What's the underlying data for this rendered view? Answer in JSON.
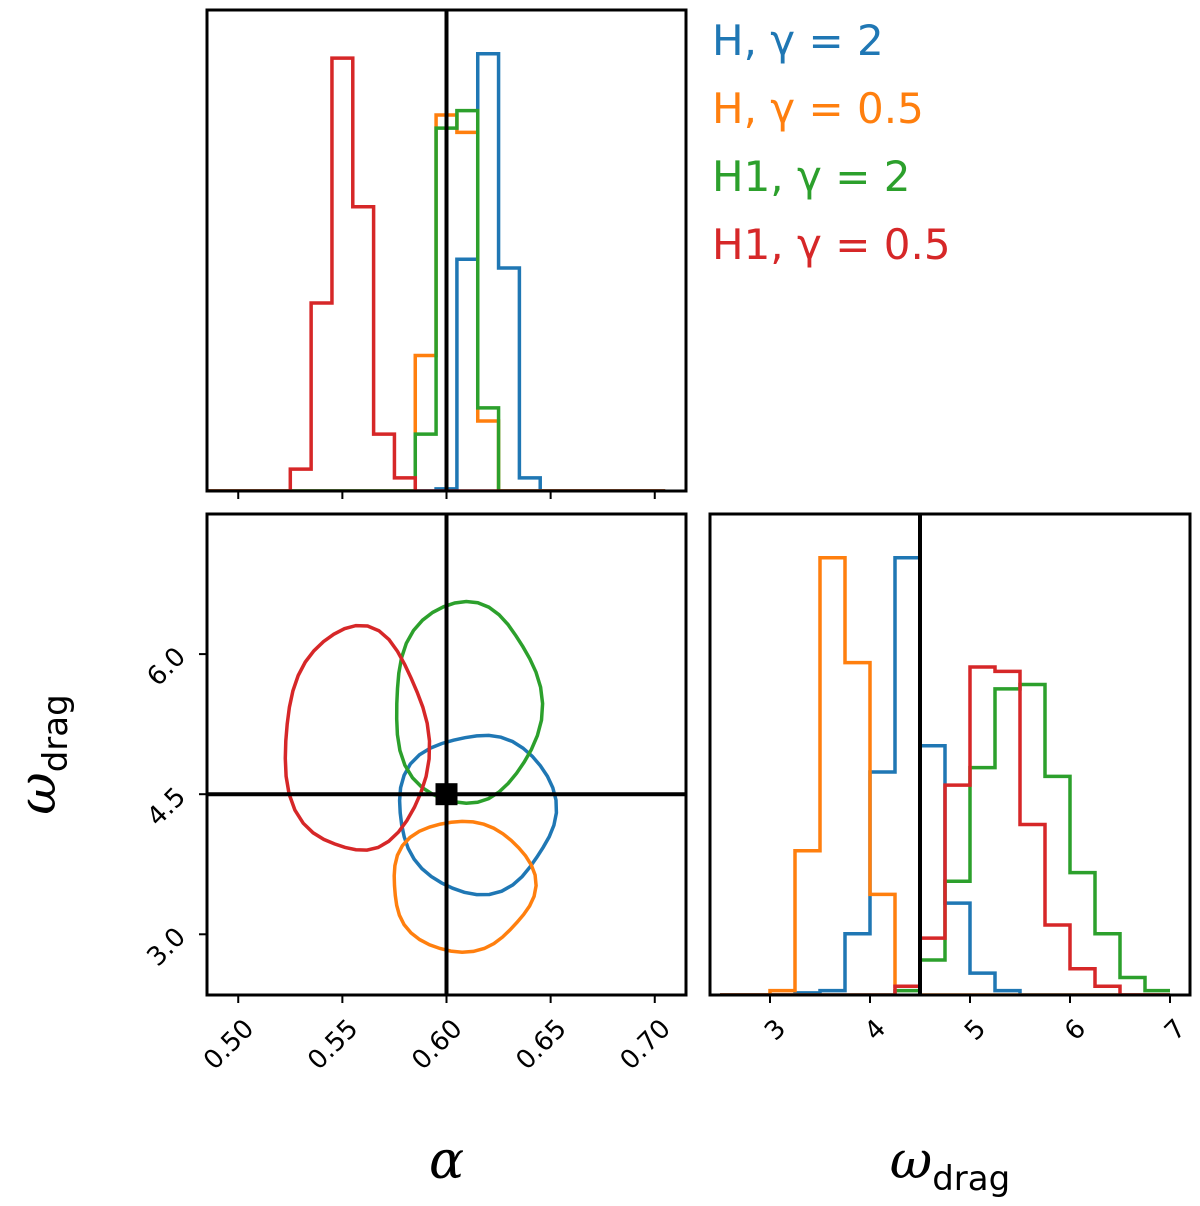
{
  "chart_data": {
    "type": "corner",
    "truth": {
      "alpha": 0.6,
      "omega_drag": 4.5
    },
    "series": [
      {
        "name": "H, γ = 2",
        "color": "#1f77b4"
      },
      {
        "name": "H, γ = 0.5",
        "color": "#ff7f0e"
      },
      {
        "name": "H1, γ = 2",
        "color": "#2ca02c"
      },
      {
        "name": "H1, γ = 0.5",
        "color": "#d62728"
      }
    ],
    "panels": {
      "alpha_hist": {
        "type": "histogram",
        "xlim": [
          0.485,
          0.715
        ],
        "ylim": [
          0,
          1.1
        ],
        "x_ticks": [
          0.5,
          0.55,
          0.6,
          0.65,
          0.7
        ],
        "bins": [
          0.485,
          0.495,
          0.505,
          0.515,
          0.525,
          0.535,
          0.545,
          0.555,
          0.565,
          0.575,
          0.585,
          0.595,
          0.605,
          0.615,
          0.625,
          0.635,
          0.645,
          0.655,
          0.665,
          0.675,
          0.685,
          0.695,
          0.705
        ],
        "counts": [
          [
            0,
            0,
            0,
            0,
            0,
            0,
            0,
            0,
            0,
            0,
            0,
            0.005,
            0.53,
            1.0,
            0.51,
            0.03,
            0,
            0,
            0,
            0,
            0,
            0
          ],
          [
            0,
            0,
            0,
            0,
            0,
            0,
            0,
            0,
            0,
            0,
            0.31,
            0.86,
            0.82,
            0.16,
            0,
            0,
            0,
            0,
            0,
            0,
            0,
            0
          ],
          [
            0,
            0,
            0,
            0,
            0,
            0,
            0,
            0,
            0,
            0,
            0.13,
            0.83,
            0.87,
            0.19,
            0,
            0,
            0,
            0,
            0,
            0,
            0,
            0
          ],
          [
            0,
            0,
            0,
            0,
            0.05,
            0.43,
            0.99,
            0.65,
            0.13,
            0.03,
            0,
            0,
            0,
            0,
            0,
            0,
            0,
            0,
            0,
            0,
            0,
            0
          ]
        ]
      },
      "joint": {
        "type": "contour",
        "xlim": [
          0.485,
          0.715
        ],
        "ylim": [
          2.35,
          7.5
        ],
        "x_ticks": [
          0.5,
          0.55,
          0.6,
          0.65,
          0.7
        ],
        "y_ticks": [
          3.0,
          4.5,
          6.0
        ],
        "xlabel": "α",
        "ylabel": "ω_drag",
        "contours": [
          {
            "cx": 0.6145,
            "cy": 4.3,
            "rx": 0.0375,
            "ry": 0.85
          },
          {
            "cx": 0.6075,
            "cy": 3.52,
            "rx": 0.034,
            "ry": 0.7
          },
          {
            "cx": 0.6095,
            "cy": 5.47,
            "rx": 0.035,
            "ry": 1.08
          },
          {
            "cx": 0.5565,
            "cy": 5.07,
            "rx": 0.0345,
            "ry": 1.2
          }
        ]
      },
      "omega_hist": {
        "type": "histogram",
        "xlim": [
          2.4,
          7.2
        ],
        "ylim": [
          0,
          1.1
        ],
        "x_ticks": [
          3,
          4,
          5,
          6,
          7
        ],
        "xlabel": "ω_drag",
        "bins": [
          2.5,
          2.75,
          3.0,
          3.25,
          3.5,
          3.75,
          4.0,
          4.25,
          4.5,
          4.75,
          5.0,
          5.25,
          5.5,
          5.75,
          6.0,
          6.25,
          6.5,
          6.75,
          7.0
        ],
        "counts": [
          [
            0,
            0,
            0,
            0.005,
            0.01,
            0.14,
            0.51,
            1.0,
            0.57,
            0.21,
            0.05,
            0.01,
            0,
            0,
            0,
            0,
            0,
            0
          ],
          [
            0,
            0,
            0.01,
            0.33,
            1.0,
            0.76,
            0.23,
            0.02,
            0,
            0,
            0,
            0,
            0,
            0,
            0,
            0,
            0,
            0
          ],
          [
            0,
            0,
            0,
            0,
            0,
            0,
            0,
            0.01,
            0.08,
            0.26,
            0.52,
            0.7,
            0.71,
            0.5,
            0.28,
            0.14,
            0.04,
            0.01
          ],
          [
            0,
            0,
            0,
            0,
            0,
            0,
            0,
            0.02,
            0.13,
            0.48,
            0.75,
            0.74,
            0.39,
            0.16,
            0.06,
            0.02,
            0,
            0
          ]
        ]
      }
    }
  }
}
